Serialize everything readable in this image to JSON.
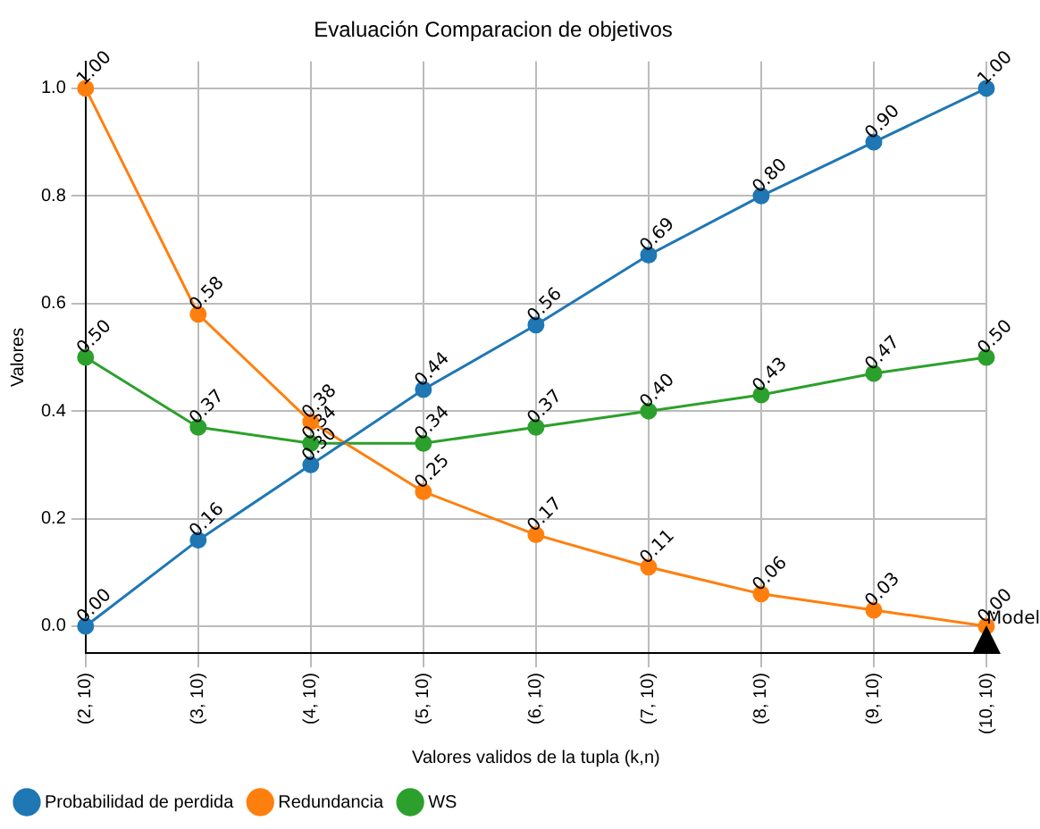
{
  "chart_data": {
    "type": "line",
    "title": "Evaluación Comparacion de objetivos",
    "xlabel": "Valores validos de la tupla (k,n)",
    "ylabel": "Valores",
    "categories": [
      "(2, 10)",
      "(3, 10)",
      "(4, 10)",
      "(5, 10)",
      "(6, 10)",
      "(7, 10)",
      "(8, 10)",
      "(9, 10)",
      "(10, 10)"
    ],
    "series": [
      {
        "name": "Probabilidad de perdida",
        "color": "#1f77b4",
        "values": [
          0.0,
          0.16,
          0.3,
          0.44,
          0.56,
          0.69,
          0.8,
          0.9,
          1.0
        ],
        "value_labels": [
          "0.00",
          "0.16",
          "0.30",
          "0.44",
          "0.56",
          "0.69",
          "0.80",
          "0.90",
          "1.00"
        ]
      },
      {
        "name": "Redundancia",
        "color": "#ff7f0e",
        "values": [
          1.0,
          0.58,
          0.38,
          0.25,
          0.17,
          0.11,
          0.06,
          0.03,
          0.0
        ],
        "value_labels": [
          "1.00",
          "0.58",
          "0.38",
          "0.25",
          "0.17",
          "0.11",
          "0.06",
          "0.03",
          "0.00"
        ]
      },
      {
        "name": "WS",
        "color": "#2ca02c",
        "values": [
          0.5,
          0.37,
          0.34,
          0.34,
          0.37,
          0.4,
          0.43,
          0.47,
          0.5
        ],
        "value_labels": [
          "0.50",
          "0.37",
          "0.34",
          "0.34",
          "0.37",
          "0.40",
          "0.43",
          "0.47",
          "0.50"
        ]
      }
    ],
    "ylim": [
      -0.05,
      1.05
    ],
    "yticks": [
      {
        "value": 0,
        "label": "0.0"
      },
      {
        "value": 0.2,
        "label": "0.2"
      },
      {
        "value": 0.4,
        "label": "0.4"
      },
      {
        "value": 0.6,
        "label": "0.6"
      },
      {
        "value": 0.8,
        "label": "0.8"
      },
      {
        "value": 1,
        "label": "1.0"
      }
    ],
    "annotations": [
      {
        "text": "Model",
        "x": "(10, 10)",
        "y": 0
      }
    ],
    "grid": true,
    "legend": "bottom left",
    "marker": "circle",
    "line_style": "solid"
  }
}
